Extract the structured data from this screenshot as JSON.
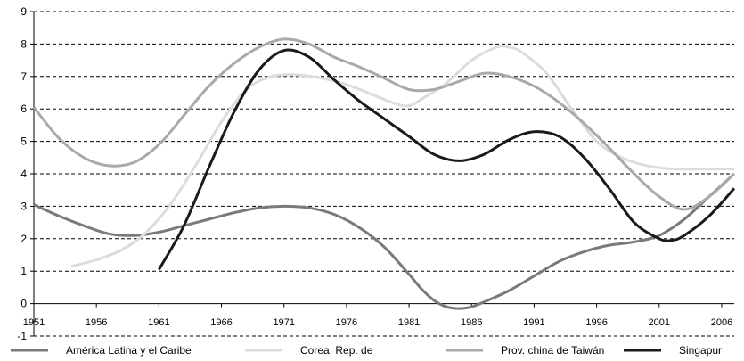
{
  "chart_data": {
    "type": "line",
    "title": "",
    "xlabel": "",
    "ylabel": "",
    "xlim": [
      1951,
      2007
    ],
    "ylim": [
      -1,
      9
    ],
    "y_ticks": [
      "-1",
      "0",
      "1",
      "2",
      "3",
      "4",
      "5",
      "6",
      "7",
      "8",
      "9"
    ],
    "x_ticks": [
      "1951",
      "1956",
      "1961",
      "1966",
      "1971",
      "1976",
      "1981",
      "1986",
      "1991",
      "1996",
      "2001",
      "2006"
    ],
    "grid": "horizontal dashed",
    "legend_position": "bottom",
    "series": [
      {
        "name": "América Latina y el Caribe",
        "color": "#7a7a7a",
        "points": [
          [
            1951,
            3.05
          ],
          [
            1953,
            2.7
          ],
          [
            1955,
            2.4
          ],
          [
            1957,
            2.15
          ],
          [
            1959,
            2.1
          ],
          [
            1961,
            2.2
          ],
          [
            1963,
            2.4
          ],
          [
            1965,
            2.6
          ],
          [
            1967,
            2.8
          ],
          [
            1969,
            2.95
          ],
          [
            1971,
            3.0
          ],
          [
            1973,
            2.95
          ],
          [
            1975,
            2.75
          ],
          [
            1977,
            2.35
          ],
          [
            1979,
            1.75
          ],
          [
            1981,
            0.9
          ],
          [
            1982,
            0.45
          ],
          [
            1983,
            0.1
          ],
          [
            1984,
            -0.1
          ],
          [
            1985,
            -0.15
          ],
          [
            1986,
            -0.1
          ],
          [
            1987,
            0.05
          ],
          [
            1989,
            0.4
          ],
          [
            1991,
            0.85
          ],
          [
            1993,
            1.3
          ],
          [
            1995,
            1.6
          ],
          [
            1997,
            1.8
          ],
          [
            1999,
            1.9
          ],
          [
            2001,
            2.1
          ],
          [
            2003,
            2.6
          ],
          [
            2005,
            3.3
          ],
          [
            2007,
            4.0
          ]
        ]
      },
      {
        "name": "Corea, Rep. de",
        "color": "#dcdcdc",
        "points": [
          [
            1954,
            1.15
          ],
          [
            1956,
            1.35
          ],
          [
            1958,
            1.65
          ],
          [
            1960,
            2.2
          ],
          [
            1962,
            3.1
          ],
          [
            1964,
            4.3
          ],
          [
            1966,
            5.6
          ],
          [
            1968,
            6.6
          ],
          [
            1970,
            7.0
          ],
          [
            1972,
            7.05
          ],
          [
            1974,
            6.95
          ],
          [
            1976,
            6.75
          ],
          [
            1978,
            6.45
          ],
          [
            1980,
            6.15
          ],
          [
            1981,
            6.1
          ],
          [
            1982,
            6.3
          ],
          [
            1984,
            6.8
          ],
          [
            1986,
            7.5
          ],
          [
            1988,
            7.9
          ],
          [
            1989,
            7.9
          ],
          [
            1990,
            7.75
          ],
          [
            1992,
            7.1
          ],
          [
            1994,
            6.0
          ],
          [
            1996,
            5.0
          ],
          [
            1998,
            4.5
          ],
          [
            2000,
            4.25
          ],
          [
            2002,
            4.15
          ],
          [
            2004,
            4.15
          ],
          [
            2007,
            4.15
          ]
        ]
      },
      {
        "name": "Prov. china de Taiwán",
        "color": "#a9a9a9",
        "points": [
          [
            1951,
            6.05
          ],
          [
            1953,
            5.1
          ],
          [
            1955,
            4.5
          ],
          [
            1957,
            4.25
          ],
          [
            1959,
            4.35
          ],
          [
            1961,
            4.9
          ],
          [
            1963,
            5.8
          ],
          [
            1965,
            6.7
          ],
          [
            1967,
            7.4
          ],
          [
            1969,
            7.9
          ],
          [
            1971,
            8.15
          ],
          [
            1973,
            8.0
          ],
          [
            1975,
            7.6
          ],
          [
            1977,
            7.3
          ],
          [
            1979,
            6.95
          ],
          [
            1981,
            6.6
          ],
          [
            1983,
            6.6
          ],
          [
            1985,
            6.85
          ],
          [
            1987,
            7.1
          ],
          [
            1989,
            7.0
          ],
          [
            1991,
            6.7
          ],
          [
            1993,
            6.2
          ],
          [
            1995,
            5.55
          ],
          [
            1997,
            4.8
          ],
          [
            1999,
            4.0
          ],
          [
            2001,
            3.3
          ],
          [
            2003,
            2.9
          ],
          [
            2005,
            3.3
          ],
          [
            2007,
            4.0
          ]
        ]
      },
      {
        "name": "Singapur",
        "color": "#1a1a1a",
        "points": [
          [
            1961,
            1.05
          ],
          [
            1963,
            2.4
          ],
          [
            1965,
            4.2
          ],
          [
            1967,
            5.9
          ],
          [
            1969,
            7.2
          ],
          [
            1971,
            7.8
          ],
          [
            1973,
            7.6
          ],
          [
            1975,
            6.9
          ],
          [
            1977,
            6.25
          ],
          [
            1979,
            5.7
          ],
          [
            1981,
            5.15
          ],
          [
            1983,
            4.6
          ],
          [
            1985,
            4.4
          ],
          [
            1987,
            4.6
          ],
          [
            1989,
            5.05
          ],
          [
            1991,
            5.3
          ],
          [
            1993,
            5.15
          ],
          [
            1995,
            4.5
          ],
          [
            1997,
            3.55
          ],
          [
            1999,
            2.5
          ],
          [
            2001,
            2.0
          ],
          [
            2002,
            1.95
          ],
          [
            2003,
            2.1
          ],
          [
            2005,
            2.7
          ],
          [
            2007,
            3.55
          ]
        ]
      }
    ]
  }
}
